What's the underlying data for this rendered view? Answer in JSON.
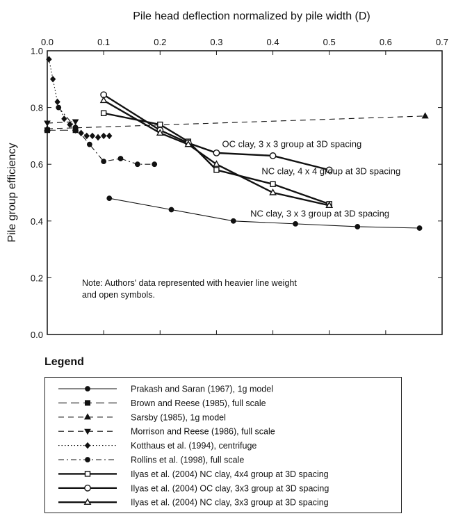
{
  "chart_data": {
    "type": "line",
    "title": "Pile head deflection normalized by pile width (D)",
    "xlabel": "Pile head deflection normalized by pile width (D)",
    "ylabel": "Pile group efficiency",
    "xlim": [
      0.0,
      0.7
    ],
    "ylim": [
      0.0,
      1.0
    ],
    "xticks": [
      "0.0",
      "0.1",
      "0.2",
      "0.3",
      "0.4",
      "0.5",
      "0.6",
      "0.7"
    ],
    "yticks": [
      "0.0",
      "0.2",
      "0.4",
      "0.6",
      "0.8",
      "1.0"
    ],
    "x_axis_position": "top",
    "grid": false,
    "legend_title": "Legend",
    "legend_position": "below",
    "note": "Note: Authors' data represented with heavier line weight and open symbols.",
    "annotations": [
      {
        "text": "OC clay, 3 x 3 group at 3D spacing",
        "x": 0.31,
        "y": 0.66
      },
      {
        "text": "NC clay, 4 x 4 group at 3D spacing",
        "x": 0.38,
        "y": 0.565
      },
      {
        "text": "NC clay, 3 x 3 group at 3D spacing",
        "x": 0.36,
        "y": 0.415
      }
    ],
    "series": [
      {
        "name": "Prakash and Saran (1967), 1g model",
        "style": "solid",
        "marker": "filled-circle",
        "weight": "light",
        "x": [
          0.11,
          0.22,
          0.33,
          0.44,
          0.55,
          0.66
        ],
        "y": [
          0.48,
          0.44,
          0.4,
          0.39,
          0.38,
          0.375
        ]
      },
      {
        "name": "Brown and Reese (1985), full scale",
        "style": "longdash",
        "marker": "filled-square",
        "weight": "light",
        "x": [
          0.0,
          0.05
        ],
        "y": [
          0.72,
          0.72
        ]
      },
      {
        "name": "Sarsby (1985), 1g model",
        "style": "dash",
        "marker": "filled-triangle",
        "weight": "light",
        "x": [
          0.0,
          0.67
        ],
        "y": [
          0.725,
          0.77
        ]
      },
      {
        "name": "Morrison and Reese (1986), full scale",
        "style": "dash",
        "marker": "filled-triangle-down",
        "weight": "light",
        "x": [
          0.0,
          0.05
        ],
        "y": [
          0.745,
          0.75
        ]
      },
      {
        "name": "Kotthaus et al. (1994), centrifuge",
        "style": "dotted",
        "marker": "filled-diamond",
        "weight": "light",
        "x": [
          0.003,
          0.01,
          0.018,
          0.03,
          0.04,
          0.05,
          0.06,
          0.07,
          0.08,
          0.09,
          0.1,
          0.11
        ],
        "y": [
          0.97,
          0.9,
          0.82,
          0.76,
          0.74,
          0.72,
          0.71,
          0.7,
          0.7,
          0.695,
          0.7,
          0.7
        ]
      },
      {
        "name": "Rollins et al. (1998), full scale",
        "style": "dashdot",
        "marker": "filled-circle",
        "weight": "light",
        "x": [
          0.02,
          0.05,
          0.075,
          0.1,
          0.13,
          0.16,
          0.19
        ],
        "y": [
          0.8,
          0.73,
          0.67,
          0.61,
          0.62,
          0.6,
          0.6
        ]
      },
      {
        "name": "Ilyas et al. (2004) NC clay, 4x4 group at 3D spacing",
        "style": "solid",
        "marker": "open-square",
        "weight": "heavy",
        "x": [
          0.1,
          0.2,
          0.25,
          0.3,
          0.4,
          0.5
        ],
        "y": [
          0.78,
          0.74,
          0.68,
          0.58,
          0.53,
          0.46
        ]
      },
      {
        "name": "Ilyas et al. (2004) OC clay, 3x3 group at 3D spacing",
        "style": "solid",
        "marker": "open-circle",
        "weight": "heavy",
        "x": [
          0.1,
          0.2,
          0.25,
          0.3,
          0.4,
          0.5
        ],
        "y": [
          0.845,
          0.72,
          0.675,
          0.64,
          0.63,
          0.58
        ]
      },
      {
        "name": "Ilyas et al. (2004) NC clay, 3x3 group at 3D spacing",
        "style": "solid",
        "marker": "open-triangle",
        "weight": "heavy",
        "x": [
          0.1,
          0.2,
          0.25,
          0.3,
          0.4,
          0.5
        ],
        "y": [
          0.825,
          0.71,
          0.67,
          0.6,
          0.5,
          0.455
        ]
      }
    ]
  }
}
